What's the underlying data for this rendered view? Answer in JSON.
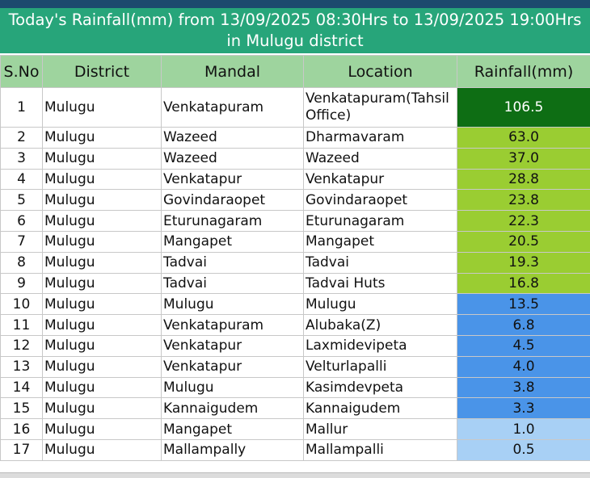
{
  "title": {
    "line1": "Today's Rainfall(mm) from 13/09/2025 08:30Hrs to 13/09/2025 19:00Hrs",
    "line2": "in Mulugu district"
  },
  "table": {
    "headers": [
      "S.No",
      "District",
      "Mandal",
      "Location",
      "Rainfall(mm)"
    ],
    "rows": [
      {
        "sno": "1",
        "district": "Mulugu",
        "mandal": "Venkatapuram",
        "location": "Venkatapuram(Tahsil Office)",
        "rainfall": "106.5",
        "color": "#0e6e14"
      },
      {
        "sno": "2",
        "district": "Mulugu",
        "mandal": "Wazeed",
        "location": "Dharmavaram",
        "rainfall": "63.0",
        "color": "#9acd32"
      },
      {
        "sno": "3",
        "district": "Mulugu",
        "mandal": "Wazeed",
        "location": "Wazeed",
        "rainfall": "37.0",
        "color": "#9acd32"
      },
      {
        "sno": "4",
        "district": "Mulugu",
        "mandal": "Venkatapur",
        "location": "Venkatapur",
        "rainfall": "28.8",
        "color": "#9acd32"
      },
      {
        "sno": "5",
        "district": "Mulugu",
        "mandal": "Govindaraopet",
        "location": "Govindaraopet",
        "rainfall": "23.8",
        "color": "#9acd32"
      },
      {
        "sno": "6",
        "district": "Mulugu",
        "mandal": "Eturunagaram",
        "location": "Eturunagaram",
        "rainfall": "22.3",
        "color": "#9acd32"
      },
      {
        "sno": "7",
        "district": "Mulugu",
        "mandal": "Mangapet",
        "location": "Mangapet",
        "rainfall": "20.5",
        "color": "#9acd32"
      },
      {
        "sno": "8",
        "district": "Mulugu",
        "mandal": "Tadvai",
        "location": "Tadvai",
        "rainfall": "19.3",
        "color": "#9acd32"
      },
      {
        "sno": "9",
        "district": "Mulugu",
        "mandal": "Tadvai",
        "location": "Tadvai Huts",
        "rainfall": "16.8",
        "color": "#9acd32"
      },
      {
        "sno": "10",
        "district": "Mulugu",
        "mandal": "Mulugu",
        "location": "Mulugu",
        "rainfall": "13.5",
        "color": "#4a94e8"
      },
      {
        "sno": "11",
        "district": "Mulugu",
        "mandal": "Venkatapuram",
        "location": "Alubaka(Z)",
        "rainfall": "6.8",
        "color": "#4a94e8"
      },
      {
        "sno": "12",
        "district": "Mulugu",
        "mandal": "Venkatapur",
        "location": "Laxmidevipeta",
        "rainfall": "4.5",
        "color": "#4a94e8"
      },
      {
        "sno": "13",
        "district": "Mulugu",
        "mandal": "Venkatapur",
        "location": "Velturlapalli",
        "rainfall": "4.0",
        "color": "#4a94e8"
      },
      {
        "sno": "14",
        "district": "Mulugu",
        "mandal": "Mulugu",
        "location": "Kasimdevpeta",
        "rainfall": "3.8",
        "color": "#4a94e8"
      },
      {
        "sno": "15",
        "district": "Mulugu",
        "mandal": "Kannaigudem",
        "location": "Kannaigudem",
        "rainfall": "3.3",
        "color": "#4a94e8"
      },
      {
        "sno": "16",
        "district": "Mulugu",
        "mandal": "Mangapet",
        "location": "Mallur",
        "rainfall": "1.0",
        "color": "#a8d0f5"
      },
      {
        "sno": "17",
        "district": "Mulugu",
        "mandal": "Mallampally",
        "location": "Mallampalli",
        "rainfall": "0.5",
        "color": "#a8d0f5"
      }
    ]
  },
  "colors": {
    "title_bg": "#27a57a",
    "header_bg": "#9ed49e",
    "topbar": "#1c4a6e"
  }
}
